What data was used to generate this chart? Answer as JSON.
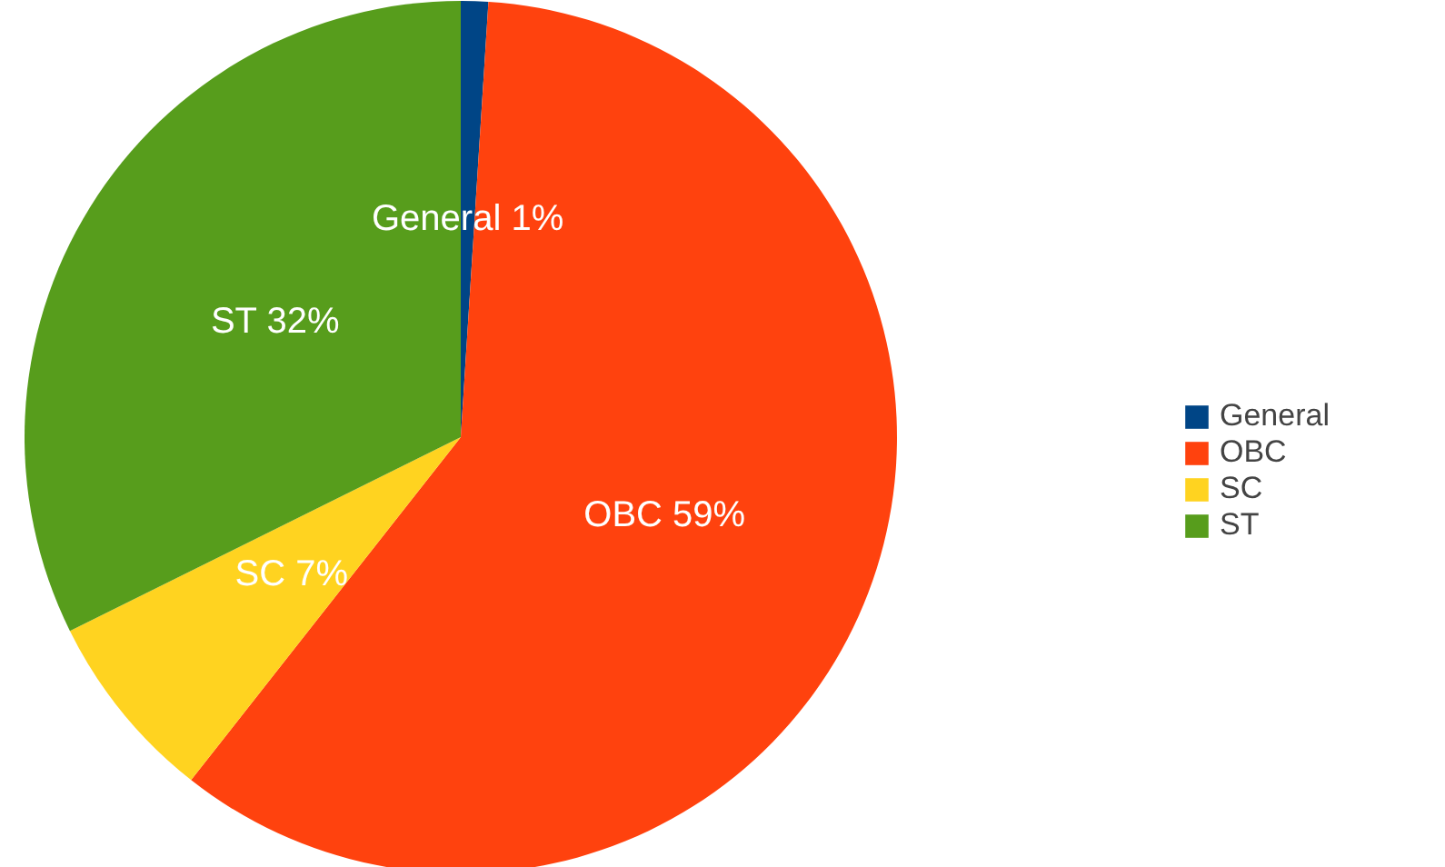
{
  "chart_data": {
    "type": "pie",
    "categories": [
      "General",
      "OBC",
      "SC",
      "ST"
    ],
    "values": [
      1,
      59,
      7,
      32
    ],
    "colors": [
      "#004586",
      "#ff420e",
      "#ffd320",
      "#579d1c"
    ],
    "value_labels": [
      "General 1%",
      "OBC 59%",
      "SC 7%",
      "ST 32%"
    ],
    "legend": "right"
  }
}
